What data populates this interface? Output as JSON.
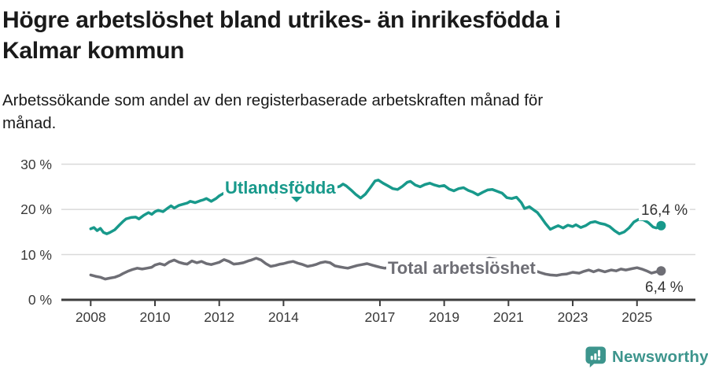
{
  "header": {
    "title_lines": [
      "Högre arbetslöshet bland utrikes- än inrikesfödda i",
      "Kalmar kommun"
    ],
    "subtitle_lines": [
      "Arbetssökande som andel av den registerbaserade arbetskraften månad för",
      "månad."
    ]
  },
  "chart_data": {
    "type": "line",
    "title": "Högre arbetslöshet bland utrikes- än inrikesfödda i Kalmar kommun",
    "subtitle": "Arbetssökande som andel av den registerbaserade arbetskraften månad för månad.",
    "unit": "%",
    "xlim": [
      2007.55,
      2026.3
    ],
    "ylim": [
      0,
      30
    ],
    "grid": "horizontal",
    "legend_position": "inline-annotations",
    "x_ticks": [
      2008,
      2010,
      2012,
      2014,
      2017,
      2019,
      2021,
      2023,
      2025
    ],
    "y_ticks": [
      {
        "value": 0,
        "label": "0 %"
      },
      {
        "value": 10,
        "label": "10 %"
      },
      {
        "value": 20,
        "label": "20 %"
      },
      {
        "value": 30,
        "label": "30 %"
      }
    ],
    "series": [
      {
        "name": "Utlandsfödda",
        "color": "#18998b",
        "end_label": "16,4 %",
        "end_value": 16.4,
        "points": [
          [
            2008.0,
            15.7
          ],
          [
            2008.1,
            16.0
          ],
          [
            2008.2,
            15.3
          ],
          [
            2008.3,
            15.8
          ],
          [
            2008.4,
            14.9
          ],
          [
            2008.5,
            14.6
          ],
          [
            2008.6,
            14.9
          ],
          [
            2008.75,
            15.5
          ],
          [
            2008.9,
            16.6
          ],
          [
            2009.0,
            17.3
          ],
          [
            2009.1,
            17.9
          ],
          [
            2009.25,
            18.2
          ],
          [
            2009.4,
            18.3
          ],
          [
            2009.5,
            17.9
          ],
          [
            2009.65,
            18.7
          ],
          [
            2009.8,
            19.3
          ],
          [
            2009.9,
            18.9
          ],
          [
            2010.0,
            19.5
          ],
          [
            2010.1,
            19.8
          ],
          [
            2010.25,
            19.5
          ],
          [
            2010.4,
            20.3
          ],
          [
            2010.5,
            20.8
          ],
          [
            2010.6,
            20.3
          ],
          [
            2010.75,
            20.9
          ],
          [
            2010.9,
            21.2
          ],
          [
            2011.0,
            21.4
          ],
          [
            2011.1,
            21.8
          ],
          [
            2011.25,
            21.5
          ],
          [
            2011.4,
            21.9
          ],
          [
            2011.5,
            22.1
          ],
          [
            2011.6,
            22.4
          ],
          [
            2011.75,
            21.8
          ],
          [
            2011.9,
            22.4
          ],
          [
            2012.0,
            23.0
          ],
          [
            2012.15,
            23.6
          ],
          [
            2012.3,
            24.0
          ],
          [
            2012.45,
            23.5
          ],
          [
            2012.6,
            23.8
          ],
          [
            2012.75,
            23.3
          ],
          [
            2012.9,
            23.7
          ],
          [
            2013.0,
            24.0
          ],
          [
            2013.15,
            24.6
          ],
          [
            2013.3,
            24.3
          ],
          [
            2013.45,
            23.8
          ],
          [
            2013.6,
            23.1
          ],
          [
            2013.75,
            22.7
          ],
          [
            2013.9,
            23.1
          ],
          [
            2014.0,
            23.5
          ],
          [
            2014.15,
            24.2
          ],
          [
            2014.3,
            24.4
          ],
          [
            2014.45,
            24.0
          ],
          [
            2014.6,
            24.3
          ],
          [
            2014.75,
            24.6
          ],
          [
            2014.9,
            24.3
          ],
          [
            2015.0,
            24.5
          ],
          [
            2015.15,
            25.0
          ],
          [
            2015.3,
            24.7
          ],
          [
            2015.45,
            25.0
          ],
          [
            2015.6,
            24.8
          ],
          [
            2015.75,
            25.1
          ],
          [
            2015.85,
            25.6
          ],
          [
            2015.95,
            25.2
          ],
          [
            2016.1,
            24.3
          ],
          [
            2016.25,
            23.3
          ],
          [
            2016.4,
            22.5
          ],
          [
            2016.55,
            23.4
          ],
          [
            2016.7,
            24.8
          ],
          [
            2016.85,
            26.3
          ],
          [
            2016.95,
            26.5
          ],
          [
            2017.1,
            25.8
          ],
          [
            2017.25,
            25.2
          ],
          [
            2017.4,
            24.6
          ],
          [
            2017.55,
            24.4
          ],
          [
            2017.7,
            25.1
          ],
          [
            2017.85,
            26.0
          ],
          [
            2017.95,
            26.2
          ],
          [
            2018.1,
            25.4
          ],
          [
            2018.25,
            25.0
          ],
          [
            2018.4,
            25.5
          ],
          [
            2018.55,
            25.8
          ],
          [
            2018.7,
            25.4
          ],
          [
            2018.85,
            25.1
          ],
          [
            2019.0,
            25.3
          ],
          [
            2019.15,
            24.5
          ],
          [
            2019.3,
            24.1
          ],
          [
            2019.45,
            24.6
          ],
          [
            2019.6,
            24.8
          ],
          [
            2019.75,
            24.2
          ],
          [
            2019.9,
            23.8
          ],
          [
            2020.05,
            23.2
          ],
          [
            2020.2,
            23.8
          ],
          [
            2020.35,
            24.3
          ],
          [
            2020.5,
            24.4
          ],
          [
            2020.65,
            24.0
          ],
          [
            2020.8,
            23.6
          ],
          [
            2020.95,
            22.6
          ],
          [
            2021.1,
            22.4
          ],
          [
            2021.25,
            22.7
          ],
          [
            2021.4,
            21.5
          ],
          [
            2021.5,
            20.2
          ],
          [
            2021.65,
            20.6
          ],
          [
            2021.8,
            19.8
          ],
          [
            2021.9,
            19.3
          ],
          [
            2022.0,
            18.4
          ],
          [
            2022.15,
            16.9
          ],
          [
            2022.3,
            15.6
          ],
          [
            2022.45,
            16.1
          ],
          [
            2022.55,
            16.4
          ],
          [
            2022.7,
            15.9
          ],
          [
            2022.85,
            16.5
          ],
          [
            2023.0,
            16.2
          ],
          [
            2023.1,
            16.6
          ],
          [
            2023.25,
            16.0
          ],
          [
            2023.4,
            16.4
          ],
          [
            2023.55,
            17.1
          ],
          [
            2023.7,
            17.3
          ],
          [
            2023.85,
            16.9
          ],
          [
            2024.0,
            16.7
          ],
          [
            2024.15,
            16.2
          ],
          [
            2024.3,
            15.3
          ],
          [
            2024.45,
            14.6
          ],
          [
            2024.6,
            15.0
          ],
          [
            2024.75,
            15.9
          ],
          [
            2024.9,
            17.2
          ],
          [
            2025.05,
            17.8
          ],
          [
            2025.2,
            17.7
          ],
          [
            2025.35,
            17.1
          ],
          [
            2025.5,
            16.1
          ],
          [
            2025.6,
            15.9
          ],
          [
            2025.75,
            16.4
          ]
        ]
      },
      {
        "name": "Total arbetslöshet",
        "color": "#6e6e75",
        "end_label": "6,4 %",
        "end_value": 6.4,
        "points": [
          [
            2008.0,
            5.5
          ],
          [
            2008.15,
            5.2
          ],
          [
            2008.3,
            5.0
          ],
          [
            2008.45,
            4.6
          ],
          [
            2008.6,
            4.8
          ],
          [
            2008.75,
            5.0
          ],
          [
            2008.9,
            5.4
          ],
          [
            2009.0,
            5.8
          ],
          [
            2009.15,
            6.3
          ],
          [
            2009.3,
            6.7
          ],
          [
            2009.45,
            7.0
          ],
          [
            2009.6,
            6.8
          ],
          [
            2009.75,
            7.0
          ],
          [
            2009.9,
            7.2
          ],
          [
            2010.0,
            7.7
          ],
          [
            2010.15,
            8.0
          ],
          [
            2010.3,
            7.7
          ],
          [
            2010.45,
            8.4
          ],
          [
            2010.6,
            8.8
          ],
          [
            2010.75,
            8.3
          ],
          [
            2010.9,
            8.0
          ],
          [
            2011.0,
            7.9
          ],
          [
            2011.15,
            8.6
          ],
          [
            2011.3,
            8.2
          ],
          [
            2011.45,
            8.5
          ],
          [
            2011.6,
            8.0
          ],
          [
            2011.75,
            7.8
          ],
          [
            2011.9,
            8.1
          ],
          [
            2012.0,
            8.3
          ],
          [
            2012.15,
            8.9
          ],
          [
            2012.3,
            8.5
          ],
          [
            2012.45,
            7.9
          ],
          [
            2012.6,
            8.0
          ],
          [
            2012.75,
            8.2
          ],
          [
            2012.9,
            8.6
          ],
          [
            2013.0,
            8.8
          ],
          [
            2013.15,
            9.2
          ],
          [
            2013.3,
            8.8
          ],
          [
            2013.45,
            8.0
          ],
          [
            2013.6,
            7.4
          ],
          [
            2013.75,
            7.6
          ],
          [
            2013.9,
            7.9
          ],
          [
            2014.0,
            8.0
          ],
          [
            2014.15,
            8.3
          ],
          [
            2014.3,
            8.5
          ],
          [
            2014.45,
            8.1
          ],
          [
            2014.6,
            7.8
          ],
          [
            2014.75,
            7.4
          ],
          [
            2014.9,
            7.6
          ],
          [
            2015.0,
            7.8
          ],
          [
            2015.15,
            8.2
          ],
          [
            2015.3,
            8.4
          ],
          [
            2015.45,
            8.2
          ],
          [
            2015.6,
            7.5
          ],
          [
            2015.75,
            7.3
          ],
          [
            2015.9,
            7.1
          ],
          [
            2016.0,
            7.0
          ],
          [
            2016.15,
            7.3
          ],
          [
            2016.3,
            7.6
          ],
          [
            2016.45,
            7.8
          ],
          [
            2016.6,
            8.0
          ],
          [
            2016.75,
            7.7
          ],
          [
            2016.9,
            7.4
          ],
          [
            2017.0,
            7.2
          ],
          [
            2017.15,
            7.0
          ],
          [
            2017.3,
            7.2
          ],
          [
            2017.45,
            7.0
          ],
          [
            2017.6,
            6.8
          ],
          [
            2017.75,
            7.0
          ],
          [
            2017.9,
            7.2
          ],
          [
            2018.0,
            7.0
          ],
          [
            2018.2,
            6.8
          ],
          [
            2018.4,
            7.0
          ],
          [
            2018.6,
            6.7
          ],
          [
            2018.8,
            6.6
          ],
          [
            2019.0,
            6.7
          ],
          [
            2019.2,
            7.0
          ],
          [
            2019.4,
            6.8
          ],
          [
            2019.6,
            6.6
          ],
          [
            2019.8,
            6.8
          ],
          [
            2020.0,
            7.0
          ],
          [
            2020.2,
            8.6
          ],
          [
            2020.4,
            9.2
          ],
          [
            2020.6,
            9.0
          ],
          [
            2020.8,
            8.7
          ],
          [
            2021.0,
            8.4
          ],
          [
            2021.2,
            8.0
          ],
          [
            2021.4,
            7.5
          ],
          [
            2021.6,
            7.0
          ],
          [
            2021.8,
            6.5
          ],
          [
            2022.0,
            6.0
          ],
          [
            2022.15,
            5.7
          ],
          [
            2022.3,
            5.5
          ],
          [
            2022.5,
            5.4
          ],
          [
            2022.65,
            5.6
          ],
          [
            2022.8,
            5.7
          ],
          [
            2023.0,
            6.1
          ],
          [
            2023.2,
            5.9
          ],
          [
            2023.35,
            6.3
          ],
          [
            2023.5,
            6.6
          ],
          [
            2023.65,
            6.2
          ],
          [
            2023.8,
            6.6
          ],
          [
            2024.0,
            6.2
          ],
          [
            2024.2,
            6.6
          ],
          [
            2024.35,
            6.4
          ],
          [
            2024.5,
            6.8
          ],
          [
            2024.65,
            6.6
          ],
          [
            2024.85,
            6.9
          ],
          [
            2025.0,
            7.1
          ],
          [
            2025.15,
            6.8
          ],
          [
            2025.3,
            6.4
          ],
          [
            2025.45,
            5.9
          ],
          [
            2025.6,
            6.2
          ],
          [
            2025.75,
            6.4
          ]
        ]
      }
    ]
  },
  "colors": {
    "accent_teal": "#18998b",
    "series_gray": "#6e6e75",
    "grid": "#d9d9d9",
    "axis": "#3d3d3d",
    "text": "#1a1a1a",
    "brand": "#3d958d"
  },
  "footer": {
    "brand": "Newsworthy"
  }
}
